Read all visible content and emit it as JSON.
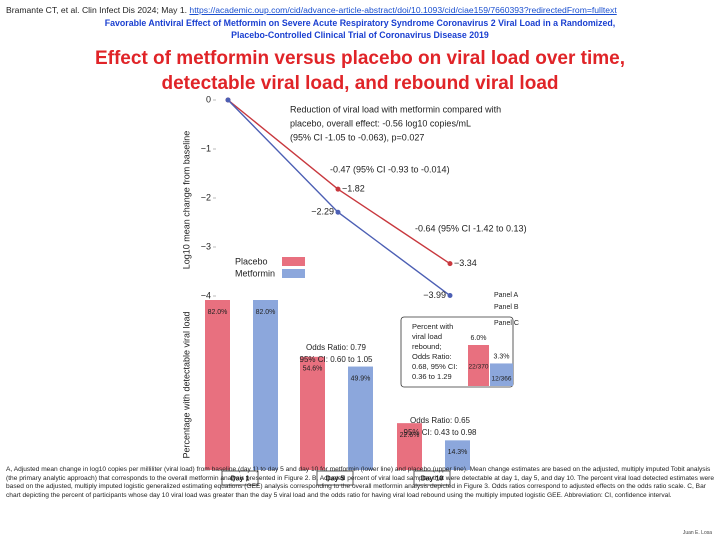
{
  "header": {
    "citation": "Bramante CT, et al. Clin Infect Dis 2024; May 1.",
    "url": "https://academic.oup.com/cid/advance-article-abstract/doi/10.1093/cid/ciae159/7660393?redirectedFrom=fulltext",
    "article_title_lines": [
      "Favorable Antiviral Effect of Metformin on Severe Acute Respiratory Syndrome Coronavirus 2 Viral Load in a Randomized,",
      "Placebo-Controlled Clinical Trial of Coronavirus Disease 2019"
    ]
  },
  "slide_title_lines": [
    "Effect of metformin versus placebo on viral load over time,",
    "detectable viral load, and rebound viral load"
  ],
  "chart_data": [
    {
      "type": "line",
      "panel": "Panel A",
      "ylabel": "Log10 mean change from baseline",
      "ylim": [
        -4,
        0
      ],
      "yticks": [
        0,
        {
          "value": -1,
          "label": "−1"
        },
        {
          "value": -2,
          "label": "−2"
        },
        {
          "value": -3,
          "label": "−3"
        },
        {
          "value": -4,
          "label": "−4"
        }
      ],
      "series": [
        {
          "name": "Placebo",
          "color": "#e8707f",
          "line_color": "#c8383e",
          "values": [
            0,
            -1.82,
            -3.34
          ],
          "value_labels": [
            null,
            "−1.82",
            "−3.34"
          ]
        },
        {
          "name": "Metformin",
          "color": "#8ca7dc",
          "line_color": "#4c5fb4",
          "values": [
            0,
            -2.29,
            -3.99
          ],
          "value_labels": [
            null,
            "−2.29",
            "−3.99"
          ]
        }
      ],
      "annotations": [
        [
          "Reduction of viral load with metformin compared with",
          "placebo, overall effect: -0.56 log10 copies/mL",
          "(95% CI -1.05 to -0.063), p=0.027"
        ],
        [
          "-0.47 (95% CI -0.93 to -0.014)"
        ],
        [
          "-0.64 (95% CI -1.42 to 0.13)"
        ]
      ]
    },
    {
      "type": "bar",
      "panel": "Panel B",
      "ylabel": "Percentage with detectable viral load",
      "ylim": [
        0,
        82
      ],
      "categories": [
        "Day 1",
        "Day 5",
        "Day 10"
      ],
      "series": [
        {
          "color": "#e8707f",
          "values": [
            82.0,
            54.6,
            22.6
          ],
          "value_labels": [
            "82.0%",
            "54.6%",
            "22.6%"
          ]
        },
        {
          "color": "#8ca7dc",
          "values": [
            82.0,
            49.9,
            14.3
          ],
          "value_labels": [
            "82.0%",
            "49.9%",
            "14.3%"
          ]
        }
      ],
      "annotations": [
        null,
        [
          "Odds Ratio: 0.79",
          "95% CI: 0.60 to 1.05"
        ],
        [
          "Odds Ratio: 0.65",
          "95% CI: 0.43 to 0.98"
        ]
      ]
    },
    {
      "type": "inset-bar",
      "panel": "Panel C",
      "title_lines": [
        "Percent with",
        "viral load",
        "rebound;",
        "Odds Ratio:",
        "0.68, 95% CI:",
        "0.36 to 1.29"
      ],
      "ylim": [
        0,
        6
      ],
      "values": [
        6.0,
        3.3
      ],
      "value_labels": [
        "6.0%",
        "3.3%"
      ],
      "bar_texts": [
        "22/370",
        "12/366"
      ],
      "colors": [
        "#e8707f",
        "#8ca7dc"
      ]
    }
  ],
  "caption": "A, Adjusted mean change in log10 copies per milliliter (viral load) from baseline (day 1) to day 5 and day 10 for metformin (lower line) and placebo (upper line). Mean change estimates are based on the adjusted, multiply imputed Tobit analysis (the primary analytic approach) that corresponds to the overall metformin analysis presented in Figure 2. B, Adjusted percent of viral load samples that were detectable at day 1, day 5, and day 10. The percent viral load detected estimates were based on the adjusted, multiply imputed logistic generalized estimating equations (GEE) analysis corresponding to the overall metformin analysis depicted in Figure 3. Odds ratios correspond to adjusted effects on the odds ratio scale. C, Bar chart depicting the percent of participants whose day 10 viral load was greater than the day 5 viral load and the odds ratio for having viral load rebound using the multiply imputed logistic GEE. Abbreviation: CI, confidence interval.",
  "credit": "Juan E. Losa"
}
